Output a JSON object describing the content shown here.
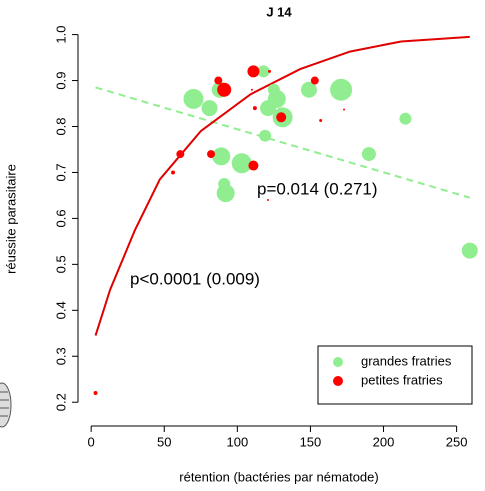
{
  "chart_data": {
    "type": "scatter",
    "title": "J 14",
    "x_label": "rétention (bactéries par nématode)",
    "y_label": "réussite parasitaire",
    "xlim": [
      -9,
      266
    ],
    "ylim": [
      0.17,
      1.01
    ],
    "xticks": [
      0,
      50,
      100,
      150,
      200,
      250
    ],
    "yticks": [
      0.2,
      0.3,
      0.4,
      0.5,
      0.6,
      0.7,
      0.8,
      0.9,
      {
        "value": 1,
        "label": "1.0"
      }
    ],
    "legend": "bottom-right",
    "series": [
      {
        "name": "grandes fratries",
        "color": "#90ee90",
        "x": [
          70,
          81,
          88,
          89,
          91,
          92,
          103,
          118,
          119,
          121,
          125,
          127,
          131,
          149,
          171,
          190,
          215,
          259
        ],
        "values": [
          0.86,
          0.84,
          0.88,
          0.735,
          0.675,
          0.655,
          0.72,
          0.92,
          0.78,
          0.84,
          0.88,
          0.86,
          0.82,
          0.88,
          0.88,
          0.74,
          0.817,
          0.53
        ],
        "sizes": [
          10,
          8,
          8,
          9,
          6,
          9,
          10,
          6,
          6,
          8,
          6,
          9,
          10,
          8,
          11,
          7,
          6,
          8
        ]
      },
      {
        "name": "petites fratries",
        "color": "#ff0000",
        "x": [
          3,
          56,
          61,
          82,
          87,
          91,
          110,
          111,
          111,
          112,
          121,
          122,
          130,
          153,
          157,
          173
        ],
        "values": [
          0.22,
          0.7,
          0.74,
          0.74,
          0.9,
          0.88,
          0.88,
          0.92,
          0.715,
          0.84,
          0.64,
          0.92,
          0.82,
          0.9,
          0.813,
          0.837
        ],
        "sizes": [
          2,
          2,
          4,
          4,
          4,
          7,
          1,
          6,
          5,
          2,
          1,
          1.5,
          5,
          4,
          1.5,
          1
        ]
      }
    ],
    "fits": [
      {
        "color": "#90ee90",
        "dashed": true,
        "x": [
          3,
          259
        ],
        "values": [
          0.885,
          0.645
        ]
      },
      {
        "color": "#e00000",
        "dashed": false,
        "x": [
          3,
          13,
          30,
          47,
          75,
          109,
          143,
          177,
          212,
          259
        ],
        "values": [
          0.345,
          0.445,
          0.575,
          0.685,
          0.79,
          0.87,
          0.925,
          0.963,
          0.985,
          0.995
        ]
      }
    ],
    "annotations": [
      {
        "text": "p=0.014 (0.271)",
        "color": "#90ee90"
      },
      {
        "text": "p<0.0001 (0.009)",
        "color": "#e00000"
      }
    ]
  }
}
